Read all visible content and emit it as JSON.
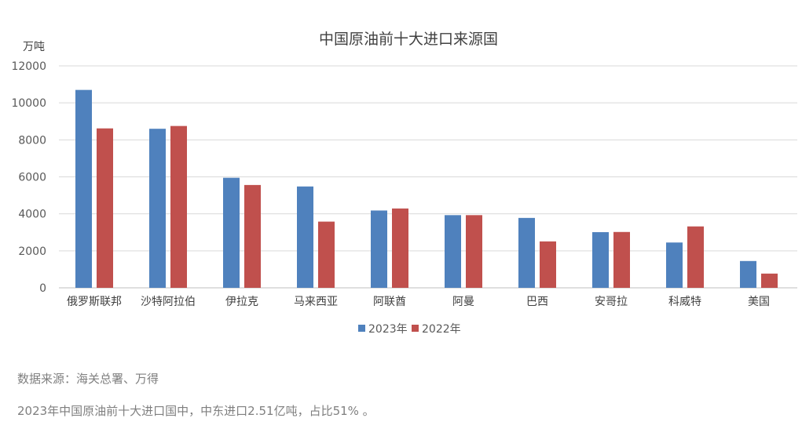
{
  "chart_data": {
    "type": "bar",
    "title": "中国原油前十大进口来源国",
    "ylabel": "万吨",
    "xlabel": "",
    "ylim": [
      0,
      12000
    ],
    "yticks": [
      0,
      2000,
      4000,
      6000,
      8000,
      10000,
      12000
    ],
    "grid": true,
    "legend": "bottom",
    "categories": [
      "俄罗斯联邦",
      "沙特阿拉伯",
      "伊拉克",
      "马来西亚",
      "阿联酋",
      "阿曼",
      "巴西",
      "安哥拉",
      "科威特",
      "美国"
    ],
    "series": [
      {
        "name": "2023年",
        "color": "#4f81bd",
        "values": [
          10700,
          8600,
          5950,
          5480,
          4180,
          3930,
          3780,
          3010,
          2450,
          1450
        ]
      },
      {
        "name": "2022年",
        "color": "#c0504d",
        "values": [
          8620,
          8750,
          5560,
          3580,
          4290,
          3930,
          2510,
          3020,
          3320,
          770
        ]
      }
    ]
  },
  "notes": {
    "source": "数据来源：海关总署、万得",
    "summary": "2023年中国原油前十大进口国中，中东进口2.51亿吨，占比51% 。"
  }
}
